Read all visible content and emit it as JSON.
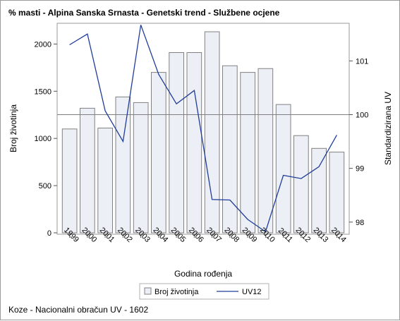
{
  "title": "% masti - Alpina Sanska Srnasta - Genetski trend - Službene ocjene",
  "footnote": "Koze - Nacionalni obračun UV - 1602",
  "chart_data": {
    "type": "bar+line",
    "title": "% masti - Alpina Sanska Srnasta - Genetski trend - Službene ocjene",
    "xlabel": "Godina rođenja",
    "ylabel": "Broj životinja",
    "y2label": "Standardizirana UV",
    "categories": [
      "1999",
      "2000",
      "2001",
      "2002",
      "2003",
      "2004",
      "2005",
      "2006",
      "2007",
      "2008",
      "2009",
      "2010",
      "2011",
      "2012",
      "2013",
      "2014"
    ],
    "ylim": [
      0,
      2220
    ],
    "yticks": [
      0,
      500,
      1000,
      1500,
      2000
    ],
    "y2lim": [
      97.8,
      101.7
    ],
    "y2ticks": [
      98,
      99,
      100,
      101
    ],
    "reference_line_y2": 100,
    "grid": false,
    "legend_position": "bottom",
    "series": [
      {
        "name": "Broj životinja",
        "type": "bar",
        "axis": "left",
        "color": "#eceff5",
        "stroke": "#808080",
        "values": [
          1100,
          1320,
          1110,
          1440,
          1380,
          1700,
          1910,
          1910,
          2130,
          1770,
          1700,
          1740,
          1360,
          1030,
          895,
          855
        ]
      },
      {
        "name": "UV12",
        "type": "line",
        "axis": "right",
        "color": "#1f3d99",
        "values": [
          101.3,
          101.5,
          100.07,
          99.5,
          101.67,
          100.75,
          100.2,
          100.45,
          98.42,
          98.41,
          98.05,
          97.82,
          98.87,
          98.81,
          99.03,
          99.62
        ]
      }
    ]
  }
}
